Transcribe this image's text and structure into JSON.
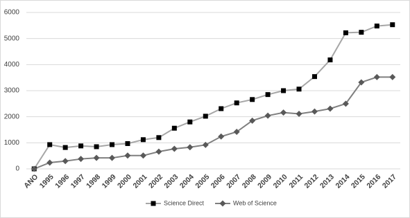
{
  "chart_data": {
    "type": "line",
    "categories": [
      "ANO",
      "1995",
      "1996",
      "1997",
      "1998",
      "1999",
      "2000",
      "2001",
      "2002",
      "2003",
      "2004",
      "2005",
      "2006",
      "2007",
      "2008",
      "2009",
      "2010",
      "2011",
      "2012",
      "2013",
      "2014",
      "2015",
      "2016",
      "2017"
    ],
    "series": [
      {
        "name": "Science Direct",
        "color": "#a6a6a6",
        "marker_color": "#000000",
        "marker": "square",
        "values": [
          0,
          930,
          820,
          880,
          850,
          930,
          970,
          1120,
          1200,
          1560,
          1800,
          2020,
          2310,
          2530,
          2660,
          2850,
          3000,
          3060,
          3540,
          4180,
          5220,
          5240,
          5480,
          5530
        ]
      },
      {
        "name": "Web of Science",
        "color": "#7f7f7f",
        "marker_color": "#595959",
        "marker": "diamond",
        "values": [
          0,
          240,
          300,
          380,
          420,
          420,
          510,
          510,
          660,
          770,
          830,
          920,
          1240,
          1420,
          1850,
          2040,
          2160,
          2110,
          2200,
          2310,
          2500,
          3320,
          3520,
          3520
        ]
      }
    ],
    "ylim": [
      0,
      6000
    ],
    "yticks": [
      0,
      1000,
      2000,
      3000,
      4000,
      5000,
      6000
    ],
    "grid": true,
    "legend": "bottom"
  }
}
